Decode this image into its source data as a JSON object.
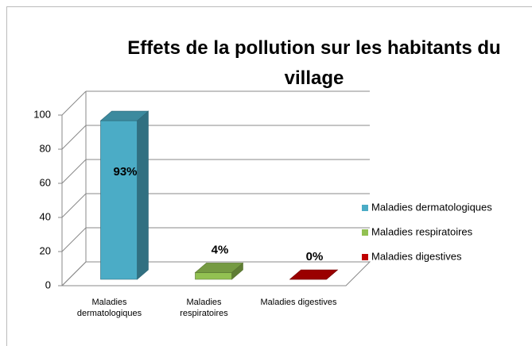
{
  "chart_data": {
    "type": "bar3d",
    "title": "Effets de la pollution sur les habitants du village",
    "categories": [
      "Maladies dermatologiques",
      "Maladies respiratoires",
      "Maladies digestives"
    ],
    "values": [
      93,
      4,
      0
    ],
    "value_labels": [
      "93%",
      "4%",
      "0%"
    ],
    "colors": [
      "#4bacc6",
      "#92c152",
      "#c00000"
    ],
    "ylim": [
      0,
      100
    ],
    "yticks": [
      0,
      20,
      40,
      60,
      80,
      100
    ],
    "grid": true,
    "legend": "right"
  }
}
